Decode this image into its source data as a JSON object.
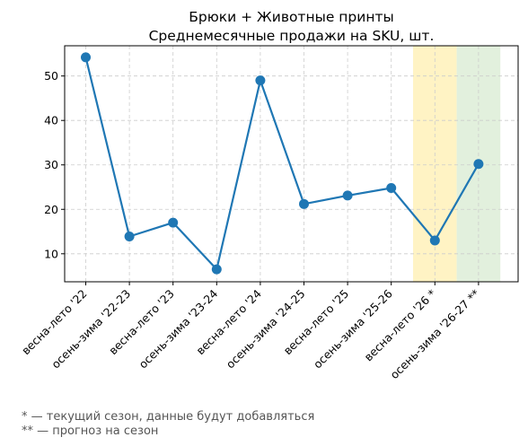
{
  "chart_data": {
    "type": "line",
    "title": [
      "Брюки + Животные принты",
      "Среднемесячные продажи на SKU, шт."
    ],
    "xlabel": "",
    "ylabel": "",
    "categories": [
      "весна-лето '22",
      "осень-зима '22-23",
      "весна-лето '23",
      "осень-зима '23-24",
      "весна-лето '24",
      "осень-зима '24-25",
      "весна-лето '25",
      "осень-зима '25-26",
      "весна-лето '26 *",
      "осень-зима '26-27 **"
    ],
    "values": [
      54.2,
      13.9,
      17.0,
      6.5,
      49.0,
      21.2,
      23.1,
      24.8,
      13.0,
      30.2
    ],
    "yticks": [
      10,
      20,
      30,
      40,
      50
    ],
    "ylim": [
      3.7,
      56.8
    ],
    "grid": true,
    "line_color": "#1f77b4",
    "highlights": [
      {
        "category_index": 8,
        "color": "#fff3c4"
      },
      {
        "category_index": 9,
        "color": "#e2f0dd"
      }
    ]
  },
  "footnotes": [
    "* — текущий сезон, данные будут добавляться",
    "** — прогноз на сезон"
  ]
}
